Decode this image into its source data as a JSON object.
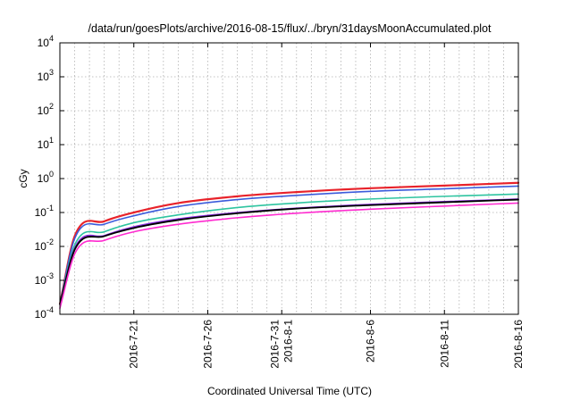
{
  "chart_data": {
    "type": "line",
    "title": "/data/run/goesPlots/archive/2016-08-15/flux/../bryn/31daysMoonAccumulated.plot",
    "xlabel": "Coordinated Universal Time (UTC)",
    "ylabel": "cGy",
    "yscale": "log",
    "grid": true,
    "ylim": [
      0.0001,
      10000
    ],
    "xlim": [
      "2016-07-16",
      "2016-08-16"
    ],
    "y_ticks": [
      {
        "base": "10",
        "exp": "-4",
        "value": 0.0001
      },
      {
        "base": "10",
        "exp": "-3",
        "value": 0.001
      },
      {
        "base": "10",
        "exp": "-2",
        "value": 0.01
      },
      {
        "base": "10",
        "exp": "-1",
        "value": 0.1
      },
      {
        "base": "10",
        "exp": "0",
        "value": 1
      },
      {
        "base": "10",
        "exp": "1",
        "value": 10
      },
      {
        "base": "10",
        "exp": "2",
        "value": 100
      },
      {
        "base": "10",
        "exp": "3",
        "value": 1000
      },
      {
        "base": "10",
        "exp": "4",
        "value": 10000
      }
    ],
    "x_ticks": [
      {
        "date": "2016-07-21",
        "lines": [
          "2016-7-21"
        ]
      },
      {
        "date": "2016-07-26",
        "lines": [
          "2016-7-26"
        ]
      },
      {
        "date": "2016-07-31",
        "lines": [
          "2016-7-31",
          "2016-8-1"
        ]
      },
      {
        "date": "2016-08-06",
        "lines": [
          "2016-8-6"
        ]
      },
      {
        "date": "2016-08-11",
        "lines": [
          "2016-8-11"
        ]
      },
      {
        "date": "2016-08-16",
        "lines": [
          "2016-8-16"
        ]
      }
    ],
    "x": [
      "2016-07-16",
      "2016-07-17",
      "2016-07-19",
      "2016-07-21",
      "2016-07-24",
      "2016-07-28",
      "2016-08-01",
      "2016-08-06",
      "2016-08-11",
      "2016-08-16"
    ],
    "series": [
      {
        "color": "#e8222a",
        "width": 2.2,
        "values": [
          0.0002,
          0.02,
          0.055,
          0.1,
          0.19,
          0.3,
          0.4,
          0.52,
          0.62,
          0.75
        ]
      },
      {
        "color": "#3b5bdb",
        "width": 1.6,
        "values": [
          0.0002,
          0.017,
          0.045,
          0.08,
          0.15,
          0.24,
          0.32,
          0.42,
          0.5,
          0.6
        ]
      },
      {
        "color": "#2ec4a0",
        "width": 1.6,
        "values": [
          0.0002,
          0.011,
          0.027,
          0.05,
          0.085,
          0.14,
          0.19,
          0.25,
          0.3,
          0.35
        ]
      },
      {
        "color": "#8a2be2",
        "width": 1.4,
        "values": [
          0.0002,
          0.009,
          0.021,
          0.038,
          0.065,
          0.1,
          0.135,
          0.175,
          0.21,
          0.25
        ]
      },
      {
        "color": "#000000",
        "width": 1.8,
        "values": [
          0.0002,
          0.008,
          0.02,
          0.035,
          0.06,
          0.095,
          0.13,
          0.165,
          0.2,
          0.24
        ]
      },
      {
        "color": "#ff2bd0",
        "width": 1.6,
        "values": [
          0.00015,
          0.006,
          0.015,
          0.027,
          0.045,
          0.07,
          0.095,
          0.125,
          0.155,
          0.19
        ]
      }
    ]
  }
}
